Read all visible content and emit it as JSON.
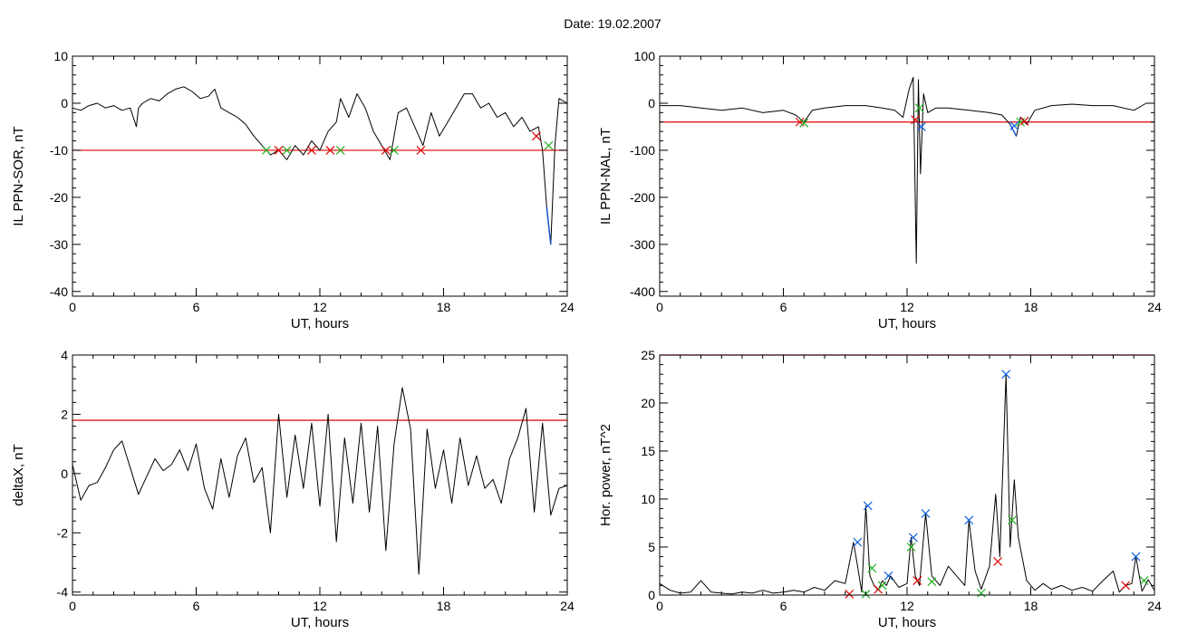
{
  "page_title": "Date:  19.02.2007",
  "colors": {
    "trace": "#000000",
    "threshold": "#e00000",
    "selected": "#1050d0",
    "marker_start": "#e00000",
    "marker_end": "#20b020",
    "marker_peak": "#1060e0"
  },
  "chart_data": [
    {
      "id": "sor",
      "type": "line",
      "ylabel": "IL PPN-SOR, nT",
      "xlabel": "UT, hours",
      "xlim": [
        0,
        24
      ],
      "ylim": [
        -41,
        10
      ],
      "x_ticks": [
        0,
        6,
        12,
        18,
        24
      ],
      "y_ticks": [
        10,
        0,
        -10,
        -20,
        -30,
        -40
      ],
      "threshold": -10,
      "series": [
        {
          "role": "trace",
          "x": [
            0,
            0.4,
            0.8,
            1.2,
            1.6,
            2.0,
            2.4,
            2.8,
            3.1,
            3.2,
            3.4,
            3.8,
            4.2,
            4.6,
            5.0,
            5.4,
            5.8,
            6.2,
            6.6,
            6.9,
            7.2,
            7.6,
            8.0,
            8.4,
            8.8,
            9.2,
            9.6,
            10.0,
            10.4,
            10.8,
            11.2,
            11.6,
            12.0,
            12.4,
            12.8,
            13.0,
            13.4,
            13.8,
            14.2,
            14.6,
            15.0,
            15.4,
            15.8,
            16.2,
            16.6,
            17.0,
            17.4,
            17.8,
            18.2,
            18.6,
            19.0,
            19.4,
            19.8,
            20.2,
            20.6,
            21.0,
            21.4,
            21.8,
            22.2,
            22.6,
            22.8,
            23.0,
            23.2,
            23.4,
            23.6,
            24.0
          ],
          "y": [
            -1,
            -1.5,
            -0.5,
            0,
            -1,
            -0.5,
            -1.5,
            -1,
            -5,
            -1,
            0,
            1,
            0.5,
            2,
            3,
            3.5,
            2.5,
            1,
            1.5,
            3,
            -1,
            -2,
            -3,
            -4.5,
            -7,
            -9,
            -11,
            -10,
            -12,
            -9,
            -11,
            -8,
            -10,
            -6,
            -4,
            1,
            -3,
            2,
            -1,
            -6,
            -9,
            -12,
            -2,
            -1,
            -5,
            -9,
            -2,
            -7,
            -4,
            -1,
            2,
            2,
            -1,
            0,
            -3,
            -2,
            -5,
            -3,
            -6,
            -5,
            -10,
            -22,
            -30,
            -9,
            1,
            0
          ]
        }
      ],
      "markers": [
        {
          "x": 9.4,
          "y": -10,
          "kind": "end"
        },
        {
          "x": 10.0,
          "y": -10,
          "kind": "start"
        },
        {
          "x": 10.4,
          "y": -10,
          "kind": "end"
        },
        {
          "x": 11.6,
          "y": -10,
          "kind": "start"
        },
        {
          "x": 12.5,
          "y": -10,
          "kind": "start"
        },
        {
          "x": 13.0,
          "y": -10,
          "kind": "end"
        },
        {
          "x": 15.2,
          "y": -10,
          "kind": "start"
        },
        {
          "x": 15.6,
          "y": -10,
          "kind": "end"
        },
        {
          "x": 16.9,
          "y": -10,
          "kind": "start"
        },
        {
          "x": 22.5,
          "y": -7,
          "kind": "start"
        },
        {
          "x": 23.1,
          "y": -9,
          "kind": "end"
        }
      ]
    },
    {
      "id": "nal",
      "type": "line",
      "ylabel": "IL PPN-NAL, nT",
      "xlabel": "UT, hours",
      "xlim": [
        0,
        24
      ],
      "ylim": [
        -410,
        100
      ],
      "x_ticks": [
        0,
        6,
        12,
        18,
        24
      ],
      "y_ticks": [
        100,
        0,
        -100,
        -200,
        -300,
        -400
      ],
      "threshold": -40,
      "series": [
        {
          "role": "trace",
          "x": [
            0,
            1,
            2,
            3,
            4,
            5,
            6,
            6.6,
            7.0,
            7.4,
            8,
            9,
            10,
            10.8,
            11.4,
            11.8,
            12.1,
            12.3,
            12.45,
            12.55,
            12.65,
            12.8,
            13.0,
            13.4,
            14,
            15,
            16,
            16.6,
            17.0,
            17.3,
            17.5,
            17.8,
            18.2,
            19,
            20,
            21,
            22,
            23,
            23.6,
            24
          ],
          "y": [
            -5,
            -5,
            -10,
            -15,
            -10,
            -20,
            -15,
            -25,
            -40,
            -15,
            -10,
            -5,
            -5,
            -10,
            -15,
            -30,
            30,
            55,
            -340,
            50,
            -150,
            20,
            -20,
            -10,
            -10,
            -15,
            -20,
            -25,
            -45,
            -70,
            -30,
            -45,
            -15,
            -5,
            -2,
            -5,
            -5,
            -15,
            0,
            0
          ]
        }
      ],
      "markers": [
        {
          "x": 6.8,
          "y": -40,
          "kind": "start"
        },
        {
          "x": 7.0,
          "y": -42,
          "kind": "end"
        },
        {
          "x": 12.4,
          "y": -35,
          "kind": "start"
        },
        {
          "x": 12.6,
          "y": -10,
          "kind": "end"
        },
        {
          "x": 12.7,
          "y": -50,
          "kind": "peak"
        },
        {
          "x": 17.2,
          "y": -48,
          "kind": "peak"
        },
        {
          "x": 17.5,
          "y": -40,
          "kind": "end"
        },
        {
          "x": 17.7,
          "y": -38,
          "kind": "start"
        }
      ]
    },
    {
      "id": "deltax",
      "type": "line",
      "ylabel": "deltaX, nT",
      "xlabel": "UT, hours",
      "xlim": [
        0,
        24
      ],
      "ylim": [
        -4.1,
        4
      ],
      "x_ticks": [
        0,
        6,
        12,
        18,
        24
      ],
      "y_ticks": [
        4,
        2,
        0,
        -2,
        -4
      ],
      "threshold": 1.8,
      "series": [
        {
          "role": "trace",
          "x": [
            0,
            0.4,
            0.8,
            1.2,
            1.6,
            2.0,
            2.4,
            2.8,
            3.2,
            3.6,
            4.0,
            4.4,
            4.8,
            5.2,
            5.6,
            6.0,
            6.4,
            6.8,
            7.2,
            7.6,
            8.0,
            8.4,
            8.8,
            9.2,
            9.6,
            10.0,
            10.4,
            10.8,
            11.2,
            11.6,
            12.0,
            12.4,
            12.8,
            13.2,
            13.6,
            14.0,
            14.4,
            14.8,
            15.2,
            15.6,
            16.0,
            16.4,
            16.8,
            17.2,
            17.6,
            18.0,
            18.4,
            18.8,
            19.2,
            19.6,
            20.0,
            20.4,
            20.8,
            21.2,
            21.6,
            22.0,
            22.4,
            22.8,
            23.2,
            23.6,
            24.0
          ],
          "y": [
            0.3,
            -0.9,
            -0.4,
            -0.3,
            0.2,
            0.8,
            1.1,
            0.2,
            -0.7,
            -0.1,
            0.5,
            0.1,
            0.3,
            0.8,
            0.1,
            1.0,
            -0.5,
            -1.2,
            0.5,
            -0.8,
            0.6,
            1.2,
            -0.3,
            0.2,
            -2.0,
            2.0,
            -0.8,
            1.3,
            -0.5,
            1.7,
            -1.1,
            2.0,
            -2.3,
            1.2,
            -1.0,
            1.7,
            -1.3,
            1.6,
            -2.6,
            1.0,
            2.9,
            1.5,
            -3.4,
            1.5,
            -0.5,
            0.8,
            -1.0,
            1.2,
            -0.4,
            0.6,
            -0.5,
            -0.2,
            -1.0,
            0.5,
            1.2,
            2.2,
            -1.3,
            1.7,
            -1.4,
            -0.5,
            -0.4
          ]
        }
      ],
      "markers": []
    },
    {
      "id": "power",
      "type": "line",
      "ylabel": "Hor. power, nT^2",
      "xlabel": "UT, hours",
      "xlim": [
        0,
        24
      ],
      "ylim": [
        0,
        25
      ],
      "x_ticks": [
        0,
        6,
        12,
        18,
        24
      ],
      "y_ticks": [
        25,
        20,
        15,
        10,
        5,
        0
      ],
      "threshold": 25,
      "series": [
        {
          "role": "trace",
          "x": [
            0,
            0.5,
            1,
            1.5,
            2,
            2.5,
            3,
            3.5,
            4,
            4.5,
            5,
            5.5,
            6,
            6.5,
            7,
            7.5,
            8,
            8.5,
            9,
            9.4,
            9.6,
            9.8,
            10.0,
            10.2,
            10.4,
            10.6,
            10.8,
            11.0,
            11.2,
            11.6,
            12.0,
            12.2,
            12.4,
            12.6,
            12.9,
            13.2,
            13.6,
            14.0,
            14.4,
            14.8,
            15.0,
            15.3,
            15.6,
            16.0,
            16.3,
            16.5,
            16.8,
            17.0,
            17.2,
            17.4,
            17.8,
            18.2,
            18.6,
            19.0,
            19.5,
            20,
            20.5,
            21,
            21.5,
            22.0,
            22.3,
            22.6,
            22.9,
            23.1,
            23.4,
            23.7,
            24.0
          ],
          "y": [
            1.2,
            0.5,
            0.2,
            0.3,
            1.5,
            0.3,
            0.2,
            0.1,
            0.3,
            0.2,
            0.5,
            0.2,
            0.3,
            0.5,
            0.3,
            0.8,
            0.5,
            1.5,
            1.2,
            5.5,
            3.0,
            0.3,
            9.3,
            2.0,
            1.0,
            0.5,
            1.5,
            1.0,
            2.0,
            0.8,
            1.2,
            6.0,
            2.0,
            1.0,
            8.5,
            2.0,
            1.0,
            3.0,
            2.0,
            1.0,
            7.8,
            2.5,
            0.6,
            3.0,
            10.5,
            4.0,
            23.0,
            5.0,
            12.0,
            6.0,
            1.5,
            0.5,
            1.2,
            0.6,
            1.0,
            0.5,
            0.8,
            0.4,
            1.5,
            2.5,
            0.3,
            1.0,
            1.2,
            4.0,
            0.4,
            1.6,
            0.5
          ]
        }
      ],
      "markers": [
        {
          "x": 9.2,
          "y": 0.1,
          "kind": "start"
        },
        {
          "x": 9.6,
          "y": 5.5,
          "kind": "peak"
        },
        {
          "x": 10.0,
          "y": 0.1,
          "kind": "end"
        },
        {
          "x": 10.1,
          "y": 9.3,
          "kind": "peak"
        },
        {
          "x": 10.3,
          "y": 2.8,
          "kind": "end"
        },
        {
          "x": 10.6,
          "y": 0.6,
          "kind": "start"
        },
        {
          "x": 10.8,
          "y": 1.0,
          "kind": "end"
        },
        {
          "x": 11.1,
          "y": 2.0,
          "kind": "peak"
        },
        {
          "x": 12.3,
          "y": 6.0,
          "kind": "peak"
        },
        {
          "x": 12.2,
          "y": 5.0,
          "kind": "end"
        },
        {
          "x": 12.5,
          "y": 1.5,
          "kind": "start"
        },
        {
          "x": 12.9,
          "y": 8.5,
          "kind": "peak"
        },
        {
          "x": 13.2,
          "y": 1.4,
          "kind": "end"
        },
        {
          "x": 15.0,
          "y": 7.8,
          "kind": "peak"
        },
        {
          "x": 15.6,
          "y": 0.2,
          "kind": "end"
        },
        {
          "x": 16.4,
          "y": 3.5,
          "kind": "start"
        },
        {
          "x": 16.8,
          "y": 23.0,
          "kind": "peak"
        },
        {
          "x": 17.1,
          "y": 7.8,
          "kind": "end"
        },
        {
          "x": 22.6,
          "y": 1.0,
          "kind": "start"
        },
        {
          "x": 23.1,
          "y": 4.0,
          "kind": "peak"
        },
        {
          "x": 23.5,
          "y": 1.5,
          "kind": "end"
        }
      ]
    }
  ]
}
